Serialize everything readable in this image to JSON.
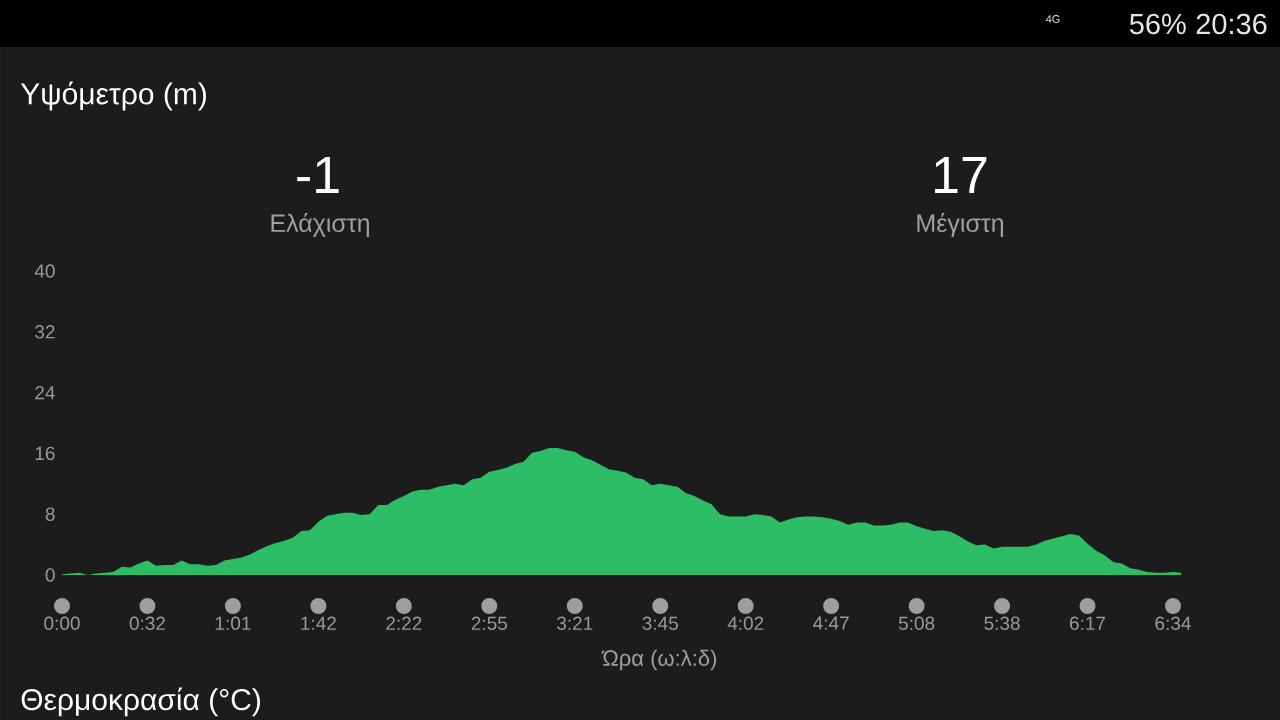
{
  "chart_data": {
    "type": "area",
    "title": "Υψόμετρο (m)",
    "xlabel": "Ώρα (ω:λ:δ)",
    "annotations": [
      "-1",
      "Ελάχιστη",
      "17",
      "Μέγιστη",
      "Θερμοκρασία (°C)",
      "56%",
      "20:36",
      "4G"
    ],
    "color": "#2dbd66",
    "categories": [
      "0:00",
      null,
      null,
      null,
      null,
      null,
      null,
      null,
      null,
      null,
      "0:32",
      null,
      null,
      null,
      null,
      null,
      null,
      null,
      null,
      null,
      "1:01",
      null,
      null,
      null,
      null,
      null,
      null,
      null,
      null,
      null,
      "1:42",
      null,
      null,
      null,
      null,
      null,
      null,
      null,
      null,
      null,
      "2:22",
      null,
      null,
      null,
      null,
      null,
      null,
      null,
      null,
      null,
      "2:55",
      null,
      null,
      null,
      null,
      null,
      null,
      null,
      null,
      null,
      "3:21",
      null,
      null,
      null,
      null,
      null,
      null,
      null,
      null,
      null,
      "3:45",
      null,
      null,
      null,
      null,
      null,
      null,
      null,
      null,
      null,
      "4:02",
      null,
      null,
      null,
      null,
      null,
      null,
      null,
      null,
      null,
      "4:47",
      null,
      null,
      null,
      null,
      null,
      null,
      null,
      null,
      null,
      "5:08",
      null,
      null,
      null,
      null,
      null,
      null,
      null,
      null,
      null,
      "5:38",
      null,
      null,
      null,
      null,
      null,
      null,
      null,
      null,
      null,
      "6:17",
      null,
      null,
      null,
      null,
      null,
      null,
      null,
      null,
      null,
      "6:34",
      null
    ],
    "values": [
      0.1,
      0.2,
      0.3,
      0,
      0.2,
      0.3,
      0.4,
      1.1,
      1.0,
      1.5,
      1.9,
      1.2,
      1.3,
      1.3,
      1.9,
      1.4,
      1.4,
      1.2,
      1.3,
      1.9,
      2.1,
      2.3,
      2.7,
      3.3,
      3.8,
      4.2,
      4.5,
      4.9,
      5.8,
      5.9,
      7.0,
      7.8,
      8.0,
      8.2,
      8.2,
      7.9,
      8.0,
      9.2,
      9.2,
      9.9,
      10.4,
      11.0,
      11.2,
      11.2,
      11.6,
      11.8,
      12.0,
      11.8,
      12.6,
      12.8,
      13.6,
      13.8,
      14.1,
      14.6,
      14.9,
      16.1,
      16.3,
      16.7,
      16.7,
      16.4,
      16.2,
      15.5,
      15.1,
      14.5,
      13.9,
      13.7,
      13.5,
      12.8,
      12.6,
      11.8,
      12.0,
      11.8,
      11.6,
      10.8,
      10.4,
      9.8,
      9.3,
      8.0,
      7.7,
      7.7,
      7.7,
      8.0,
      7.9,
      7.7,
      6.9,
      7.3,
      7.6,
      7.7,
      7.7,
      7.6,
      7.4,
      7.1,
      6.6,
      6.9,
      6.9,
      6.5,
      6.5,
      6.6,
      6.9,
      6.9,
      6.4,
      6.1,
      5.8,
      5.9,
      5.7,
      5.1,
      4.4,
      3.9,
      4.0,
      3.5,
      3.7,
      3.7,
      3.7,
      3.7,
      4.0,
      4.5,
      4.8,
      5.1,
      5.4,
      5.2,
      4.1,
      3.2,
      2.6,
      1.7,
      1.5,
      0.9,
      0.7,
      0.4,
      0.3,
      0.3,
      0.4,
      0.3
    ],
    "ylim": [
      0,
      40
    ],
    "yticks": [
      0,
      8,
      16,
      24,
      32,
      40
    ]
  }
}
